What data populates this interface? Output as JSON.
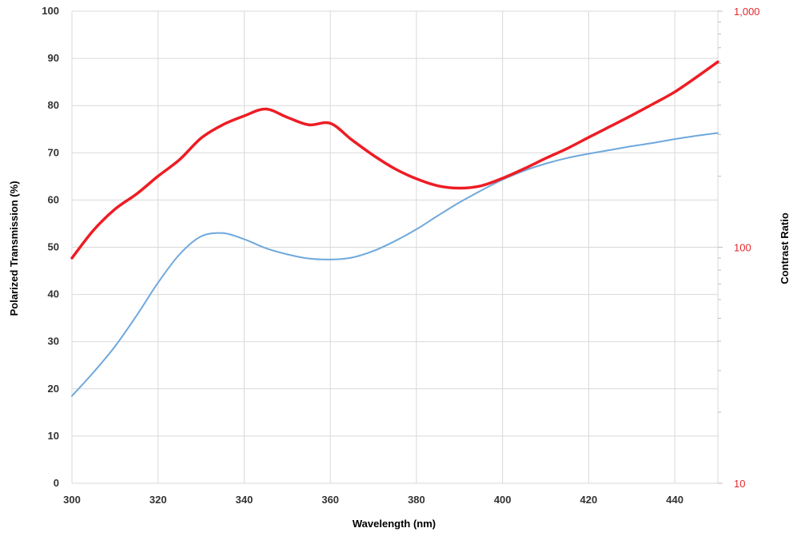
{
  "chart_data": {
    "type": "line",
    "title": "",
    "xlabel": "Wavelength (nm)",
    "ylabel": "Polarized Transmission (%)",
    "y2label": "Contrast Ratio",
    "xlim": [
      300,
      450
    ],
    "ylim": [
      0,
      100
    ],
    "y2lim": [
      10,
      1000
    ],
    "y2scale": "log",
    "grid": true,
    "x_ticks": [
      300,
      320,
      340,
      360,
      380,
      400,
      420,
      440
    ],
    "x_tick_labels": [
      "300",
      "320",
      "340",
      "360",
      "380",
      "400",
      "420",
      "440"
    ],
    "y_ticks": [
      0,
      10,
      20,
      30,
      40,
      50,
      60,
      70,
      80,
      90,
      100
    ],
    "y_tick_labels": [
      "0",
      "10",
      "20",
      "30",
      "40",
      "50",
      "60",
      "70",
      "80",
      "90",
      "100"
    ],
    "y2_ticks": [
      10,
      100,
      1000
    ],
    "y2_tick_labels": [
      "10",
      "100",
      "1,000"
    ],
    "series": [
      {
        "axis": "left",
        "color": "#6fa8dc",
        "x": [
          300,
          305,
          310,
          315,
          320,
          325,
          330,
          335,
          340,
          345,
          350,
          355,
          360,
          365,
          370,
          375,
          380,
          385,
          390,
          395,
          400,
          405,
          410,
          415,
          420,
          425,
          430,
          435,
          440,
          445,
          450
        ],
        "y": [
          18.5,
          23.5,
          29,
          35.5,
          42.5,
          48.5,
          52.3,
          53,
          51.7,
          49.8,
          48.5,
          47.6,
          47.4,
          47.8,
          49.2,
          51.3,
          53.8,
          56.7,
          59.5,
          62,
          64.3,
          66.2,
          67.7,
          68.9,
          69.8,
          70.6,
          71.4,
          72.1,
          72.9,
          73.6,
          74.2
        ]
      },
      {
        "axis": "right",
        "color": "#ee1c24",
        "x": [
          300,
          305,
          310,
          315,
          320,
          325,
          330,
          335,
          340,
          345,
          350,
          355,
          360,
          365,
          370,
          375,
          380,
          385,
          390,
          395,
          400,
          405,
          410,
          415,
          420,
          425,
          430,
          435,
          440,
          445,
          450
        ],
        "y": [
          90,
          118,
          145,
          168,
          200,
          235,
          290,
          330,
          360,
          385,
          355,
          330,
          335,
          285,
          245,
          215,
          195,
          182,
          178,
          182,
          196,
          215,
          238,
          262,
          292,
          325,
          362,
          405,
          455,
          525,
          610
        ]
      }
    ]
  }
}
